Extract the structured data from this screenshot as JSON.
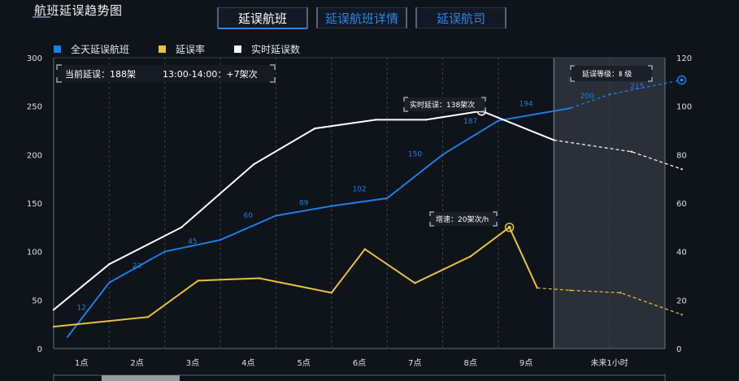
{
  "title": "航班延误趋势图",
  "tabs": [
    {
      "label": "延误航班",
      "active": true
    },
    {
      "label": "延误航班详情",
      "active": false
    },
    {
      "label": "延误航司",
      "active": false
    }
  ],
  "colors": {
    "flights": "#1a80e6",
    "rate": "#e8c23a",
    "realtime": "#ffffff",
    "future_band": "#2b2f38",
    "grid": "#3a404c"
  },
  "legend": [
    {
      "label": "全天延误航班",
      "color": "#1a80e6"
    },
    {
      "label": "延误率",
      "color": "#e8c23a"
    },
    {
      "label": "实时延误数",
      "color": "#ffffff"
    }
  ],
  "info_box": {
    "current_label": "当前延误：188架",
    "window_label": "13:00-14:00：+7架次"
  },
  "level_box": {
    "label": "延误等级：Ⅱ 级"
  },
  "tooltip_realtime": {
    "label": "实时延误：138架次"
  },
  "tooltip_speed": {
    "label": "增速：20架次/h"
  },
  "chart_data": {
    "type": "line",
    "categories": [
      "1点",
      "2点",
      "3点",
      "4点",
      "5点",
      "6点",
      "7点",
      "8点",
      "9点",
      "未来1小时"
    ],
    "y_left": {
      "min": 0,
      "max": 300,
      "ticks": [
        0,
        50,
        100,
        150,
        200,
        250,
        300
      ]
    },
    "y_right": {
      "min": 0,
      "max": 120,
      "ticks": [
        0,
        20,
        40,
        60,
        80,
        100,
        120
      ]
    },
    "grid": true,
    "legend_position": "top-left",
    "series": [
      {
        "name": "全天延误航班",
        "axis": "left",
        "x": [
          0.25,
          1.0,
          2.0,
          3.0,
          4.0,
          5.0,
          6.0,
          7.0,
          8.0,
          9.3,
          10.0,
          11.3
        ],
        "values": [
          12,
          68,
          100,
          112,
          137,
          147,
          155,
          200,
          235,
          248,
          262,
          277
        ],
        "labels": [
          "12",
          "23",
          "45",
          "60",
          "89",
          "102",
          "150",
          "187",
          "194",
          "200",
          "215",
          ""
        ],
        "label_x": [
          0.5,
          1.5,
          2.5,
          3.5,
          4.5,
          5.5,
          6.5,
          7.5,
          8.5,
          9.6,
          10.5,
          null
        ],
        "label_y": [
          40,
          83,
          108,
          135,
          148,
          162,
          198,
          232,
          250,
          258,
          268,
          null
        ],
        "forecast_from_index": 9,
        "marker_index": 11
      },
      {
        "name": "延误率",
        "axis": "right",
        "x": [
          0.0,
          1.7,
          2.6,
          3.7,
          5.0,
          5.6,
          6.5,
          7.5,
          8.2,
          8.7,
          9.3,
          10.2,
          11.3
        ],
        "values": [
          9,
          13,
          28,
          29,
          23,
          41,
          27,
          38,
          50,
          25,
          24,
          23,
          14
        ],
        "forecast_from_index": 9,
        "marker_index": 8
      },
      {
        "name": "实时延误数",
        "axis": "left",
        "x": [
          0.0,
          1.0,
          2.3,
          3.6,
          4.7,
          5.8,
          6.7,
          7.7,
          9.0,
          10.4,
          11.3
        ],
        "values": [
          40,
          87,
          125,
          190,
          227,
          236,
          236,
          245,
          215,
          203,
          185
        ],
        "forecast_from_index": 8,
        "marker_index": 7
      }
    ]
  }
}
